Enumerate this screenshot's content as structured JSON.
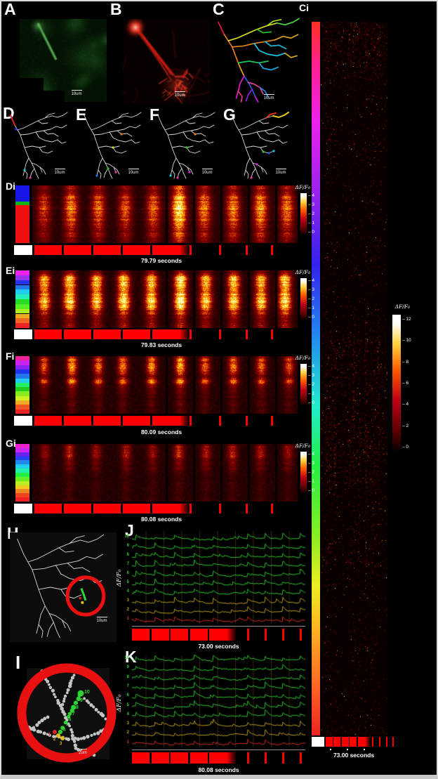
{
  "panels": {
    "A": {
      "label": "A",
      "scale_label": "10um"
    },
    "B": {
      "label": "B",
      "scale_label": "10um"
    },
    "C": {
      "label": "C",
      "scale_label": "10um"
    },
    "Ci": {
      "label": "Ci",
      "time_label": "73.00 seconds",
      "colorbar": {
        "title": "ΔF/F₀",
        "ticks": [
          "12",
          "10",
          "8",
          "6",
          "4",
          "2",
          "0"
        ]
      }
    },
    "D": {
      "label": "D",
      "scale_label": "10um"
    },
    "E": {
      "label": "E",
      "scale_label": "10um"
    },
    "F": {
      "label": "F",
      "scale_label": "10um"
    },
    "G": {
      "label": "G",
      "scale_label": "10um"
    },
    "Di": {
      "label": "Di",
      "time_label": "79.79 seconds",
      "colorbar": {
        "title": "ΔF/F₀",
        "ticks": [
          "4",
          "3",
          "2",
          "1",
          "0"
        ]
      },
      "strip": [
        "#1616e8",
        "#12b412",
        "#ee1010"
      ],
      "strip_fracs": [
        0.28,
        0.06,
        0.66
      ]
    },
    "Ei": {
      "label": "Ei",
      "time_label": "79.83 seconds",
      "colorbar": {
        "title": "ΔF/F₀",
        "ticks": [
          "4",
          "3",
          "2",
          "1",
          "0"
        ]
      },
      "strip": [
        "#ee22ee",
        "#9933ee",
        "#2233ee",
        "#2277ee",
        "#22ccee",
        "#22eebb",
        "#22dd22",
        "#55ee22",
        "#aaee22",
        "#eeaa22",
        "#ee6622",
        "#ee2222"
      ]
    },
    "Fi": {
      "label": "Fi",
      "time_label": "80.09 seconds",
      "colorbar": {
        "title": "ΔF/F₀",
        "ticks": [
          "4",
          "3",
          "2",
          "1",
          "0"
        ]
      },
      "strip": [
        "#ee2299",
        "#cc22ee",
        "#8822ee",
        "#2233ee",
        "#2277ee",
        "#22ccee",
        "#22ee66",
        "#22cc22",
        "#88ee22",
        "#ccee22",
        "#eeaa22",
        "#ee5522",
        "#ee2222"
      ]
    },
    "Gi": {
      "label": "Gi",
      "time_label": "80.08 seconds",
      "colorbar": {
        "title": "ΔF/F₀",
        "ticks": [
          "4",
          "3",
          "2",
          "1",
          "0"
        ]
      },
      "strip": [
        "#ee22cc",
        "#cc22ee",
        "#6622ee",
        "#2244ee",
        "#2288ee",
        "#22ccee",
        "#22eeaa",
        "#22ee44",
        "#66ee22",
        "#bbee22",
        "#eecc22",
        "#ee8822",
        "#ee4422",
        "#ee2222"
      ]
    },
    "H": {
      "label": "H",
      "scale_label": "10um"
    },
    "I": {
      "label": "I",
      "scale_label": "2um",
      "point_labels": [
        "10",
        "9",
        "8",
        "7",
        "6",
        "5",
        "4",
        "3",
        "2",
        "1"
      ]
    },
    "J": {
      "label": "J",
      "ylabel": "ΔF/F₀",
      "time_label": "73.00 seconds",
      "trace_labels": [
        "10",
        "9",
        "8",
        "7",
        "6",
        "5",
        "4",
        "3",
        "2",
        "1"
      ]
    },
    "K": {
      "label": "K",
      "ylabel": "ΔF/F₀",
      "time_label": "80.08 seconds",
      "trace_labels": [
        "10",
        "9",
        "8",
        "7",
        "6",
        "5",
        "4",
        "3",
        "2",
        "1"
      ]
    }
  },
  "colors": {
    "stimulus_red": "#ff0000",
    "trace_green": "#2dc22d",
    "trace_yellow": "#b99b10",
    "trace_red": "#cf2a21",
    "highlight_ring_red": "#e81010"
  }
}
